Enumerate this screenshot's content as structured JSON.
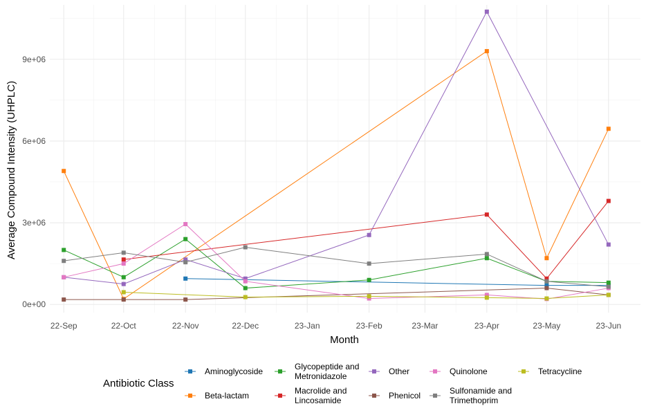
{
  "chart_data": {
    "type": "line",
    "xlabel": "Month",
    "ylabel": "Average Compound Intensity (UHPLC)",
    "x_ticks": [
      "22-Sep",
      "22-Oct",
      "22-Nov",
      "22-Dec",
      "23-Jan",
      "23-Feb",
      "23-Mar",
      "23-Apr",
      "23-May",
      "23-Jun"
    ],
    "y_ticks": [
      "0e+00",
      "3e+06",
      "6e+06",
      "9e+06"
    ],
    "y_tick_values": [
      0,
      3000000,
      6000000,
      9000000
    ],
    "ylim": [
      -300000,
      11000000
    ],
    "xlim": [
      "2022-08-25",
      "2023-06-17"
    ],
    "grid": true,
    "legend": {
      "title": "Antibiotic Class",
      "position": "bottom"
    },
    "series": [
      {
        "name": "Aminoglycoside",
        "color": "#1f77b4",
        "points": [
          [
            "2022-11-01",
            950000
          ],
          [
            "2023-05-01",
            700000
          ],
          [
            "2023-06-01",
            700000
          ]
        ]
      },
      {
        "name": "Beta-lactam",
        "color": "#ff7f0e",
        "points": [
          [
            "2022-09-01",
            4900000
          ],
          [
            "2022-10-01",
            200000
          ],
          [
            "2023-04-01",
            9300000
          ],
          [
            "2023-05-01",
            1700000
          ],
          [
            "2023-06-01",
            6450000
          ]
        ]
      },
      {
        "name": "Glycopeptide and\nMetronidazole",
        "color": "#2ca02c",
        "points": [
          [
            "2022-09-01",
            2000000
          ],
          [
            "2022-10-01",
            1000000
          ],
          [
            "2022-11-01",
            2400000
          ],
          [
            "2022-12-01",
            600000
          ],
          [
            "2023-02-01",
            900000
          ],
          [
            "2023-04-01",
            1700000
          ],
          [
            "2023-05-01",
            850000
          ],
          [
            "2023-06-01",
            800000
          ]
        ]
      },
      {
        "name": "Macrolide and\nLincosamide",
        "color": "#d62728",
        "points": [
          [
            "2022-10-01",
            1650000
          ],
          [
            "2023-04-01",
            3300000
          ],
          [
            "2023-05-01",
            950000
          ],
          [
            "2023-06-01",
            3800000
          ]
        ]
      },
      {
        "name": "Other",
        "color": "#9467bd",
        "points": [
          [
            "2022-09-01",
            1000000
          ],
          [
            "2022-10-01",
            750000
          ],
          [
            "2022-11-01",
            1650000
          ],
          [
            "2022-12-01",
            950000
          ],
          [
            "2023-02-01",
            2550000
          ],
          [
            "2023-04-01",
            10750000
          ],
          [
            "2023-06-01",
            2200000
          ]
        ]
      },
      {
        "name": "Phenicol",
        "color": "#8c564b",
        "points": [
          [
            "2022-09-01",
            180000
          ],
          [
            "2022-10-01",
            180000
          ],
          [
            "2022-11-01",
            180000
          ],
          [
            "2023-05-01",
            600000
          ],
          [
            "2023-06-01",
            350000
          ]
        ]
      },
      {
        "name": "Quinolone",
        "color": "#e377c2",
        "points": [
          [
            "2022-09-01",
            1000000
          ],
          [
            "2022-10-01",
            1500000
          ],
          [
            "2022-11-01",
            2950000
          ],
          [
            "2022-12-01",
            850000
          ],
          [
            "2023-02-01",
            220000
          ],
          [
            "2023-04-01",
            350000
          ],
          [
            "2023-05-01",
            200000
          ],
          [
            "2023-06-01",
            600000
          ]
        ]
      },
      {
        "name": "Sulfonamide and\nTrimethoprim",
        "color": "#7f7f7f",
        "points": [
          [
            "2022-09-01",
            1600000
          ],
          [
            "2022-10-01",
            1900000
          ],
          [
            "2022-11-01",
            1550000
          ],
          [
            "2022-12-01",
            2100000
          ],
          [
            "2023-02-01",
            1500000
          ],
          [
            "2023-04-01",
            1850000
          ],
          [
            "2023-05-01",
            850000
          ],
          [
            "2023-06-01",
            650000
          ]
        ]
      },
      {
        "name": "Tetracycline",
        "color": "#bcbd22",
        "points": [
          [
            "2022-10-01",
            450000
          ],
          [
            "2022-12-01",
            270000
          ],
          [
            "2023-02-01",
            300000
          ],
          [
            "2023-04-01",
            250000
          ],
          [
            "2023-05-01",
            220000
          ],
          [
            "2023-06-01",
            350000
          ]
        ]
      }
    ]
  }
}
